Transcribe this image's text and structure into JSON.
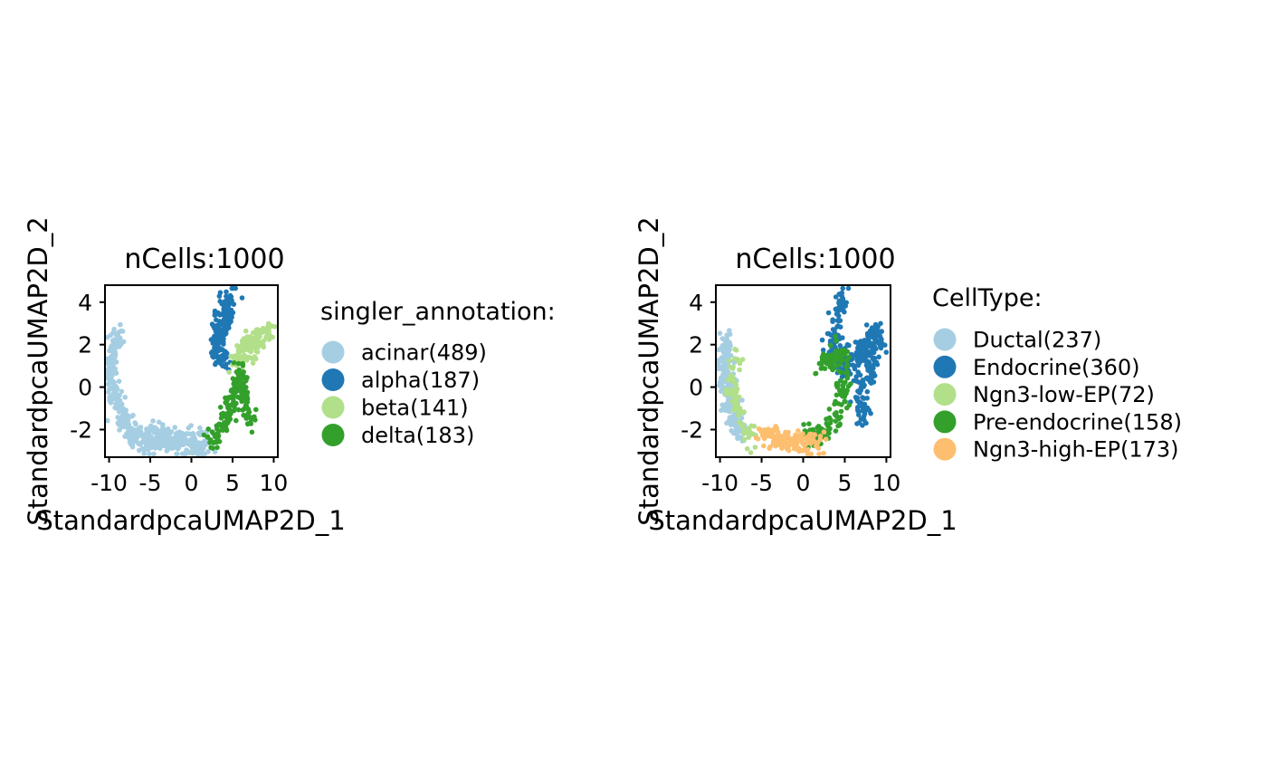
{
  "chart_data": [
    {
      "type": "scatter",
      "title": "nCells:1000",
      "xlabel": "StandardpcaUMAP2D_1",
      "ylabel": "StandardpcaUMAP2D_2",
      "xlim": [
        -10.5,
        10.5
      ],
      "ylim": [
        -3.3,
        4.8
      ],
      "xticks": [
        -10,
        -5,
        0,
        5,
        10
      ],
      "yticks": [
        -2,
        0,
        2,
        4
      ],
      "x_tick_labels": [
        "-10",
        "-5",
        "0",
        "5",
        "10"
      ],
      "y_tick_labels": [
        "-2",
        "0",
        "2",
        "4"
      ],
      "grid": false,
      "legend_title": "singler_annotation:",
      "legend_position": "right",
      "series": [
        {
          "name": "acinar(489)",
          "count": 489,
          "color": "#a6cee3",
          "path": [
            [
              -8.8,
              2.5
            ],
            [
              -9.8,
              1.5
            ],
            [
              -9.5,
              0
            ],
            [
              -8.6,
              -1.3
            ],
            [
              -7,
              -2.3
            ],
            [
              -4,
              -2.5
            ],
            [
              -1,
              -2.6
            ],
            [
              1,
              -2.7
            ],
            [
              2,
              -2.6
            ]
          ],
          "spread": [
            0.45,
            0.32
          ]
        },
        {
          "name": "alpha(187)",
          "count": 187,
          "color": "#1f78b4",
          "path": [
            [
              4.6,
              4.3
            ],
            [
              4.1,
              3.5
            ],
            [
              3.4,
              2.6
            ],
            [
              3.3,
              1.7
            ],
            [
              3.6,
              1.1
            ]
          ],
          "spread": [
            0.5,
            0.25
          ]
        },
        {
          "name": "beta(141)",
          "count": 141,
          "color": "#b2df8a",
          "path": [
            [
              5.2,
              1.2
            ],
            [
              6.3,
              1.7
            ],
            [
              7.4,
              2
            ],
            [
              8.6,
              2.3
            ],
            [
              9.4,
              2.6
            ]
          ],
          "spread": [
            0.45,
            0.28
          ]
        },
        {
          "name": "delta(183)",
          "count": 183,
          "color": "#33a02c",
          "path": [
            [
              2.2,
              -2.5
            ],
            [
              3.6,
              -2
            ],
            [
              4.5,
              -1.2
            ],
            [
              5.4,
              0
            ],
            [
              5.7,
              0.9
            ],
            [
              6.6,
              -0.8
            ],
            [
              7.3,
              -1.9
            ]
          ],
          "spread": [
            0.4,
            0.25
          ]
        }
      ]
    },
    {
      "type": "scatter",
      "title": "nCells:1000",
      "xlabel": "StandardpcaUMAP2D_1",
      "ylabel": "StandardpcaUMAP2D_2",
      "xlim": [
        -10.5,
        10.5
      ],
      "ylim": [
        -3.3,
        4.8
      ],
      "xticks": [
        -10,
        -5,
        0,
        5,
        10
      ],
      "yticks": [
        -2,
        0,
        2,
        4
      ],
      "x_tick_labels": [
        "-10",
        "-5",
        "0",
        "5",
        "10"
      ],
      "y_tick_labels": [
        "-2",
        "0",
        "2",
        "4"
      ],
      "grid": false,
      "legend_title": "CellType:",
      "legend_position": "right",
      "series": [
        {
          "name": "Ductal(237)",
          "count": 237,
          "color": "#a6cee3",
          "path": [
            [
              -9.3,
              2.2
            ],
            [
              -9.6,
              1
            ],
            [
              -9,
              0
            ],
            [
              -8.3,
              -1.2
            ],
            [
              -7.6,
              -2.2
            ]
          ],
          "spread": [
            0.45,
            0.3
          ]
        },
        {
          "name": "Endocrine(360)",
          "count": 360,
          "color": "#1f78b4",
          "path": [
            [
              4.6,
              4.3
            ],
            [
              4,
              3
            ],
            [
              3.5,
              1.9
            ],
            [
              5.2,
              0.8
            ],
            [
              6.6,
              1.5
            ],
            [
              7.8,
              2.1
            ],
            [
              9.2,
              2.5
            ],
            [
              7,
              -0.5
            ],
            [
              7.3,
              -1.6
            ]
          ],
          "spread": [
            0.5,
            0.3
          ]
        },
        {
          "name": "Ngn3-low-EP(72)",
          "count": 72,
          "color": "#b2df8a",
          "path": [
            [
              -8,
              1.5
            ],
            [
              -8.6,
              -0.3
            ],
            [
              -6.7,
              -2.1
            ],
            [
              -5.8,
              -2.4
            ]
          ],
          "spread": [
            0.45,
            0.3
          ]
        },
        {
          "name": "Pre-endocrine(158)",
          "count": 158,
          "color": "#33a02c",
          "path": [
            [
              0.5,
              -2.4
            ],
            [
              2,
              -2.2
            ],
            [
              3.6,
              -1.6
            ],
            [
              4.5,
              -0.5
            ],
            [
              5,
              0.6
            ],
            [
              4.2,
              1.6
            ],
            [
              2,
              0.8
            ]
          ],
          "spread": [
            0.45,
            0.28
          ]
        },
        {
          "name": "Ngn3-high-EP(173)",
          "count": 173,
          "color": "#fdbf6f",
          "path": [
            [
              -5,
              -2.2
            ],
            [
              -3,
              -2.5
            ],
            [
              -1,
              -2.6
            ],
            [
              0.5,
              -2.7
            ],
            [
              1.5,
              -2.6
            ]
          ],
          "spread": [
            0.6,
            0.25
          ]
        }
      ]
    }
  ]
}
